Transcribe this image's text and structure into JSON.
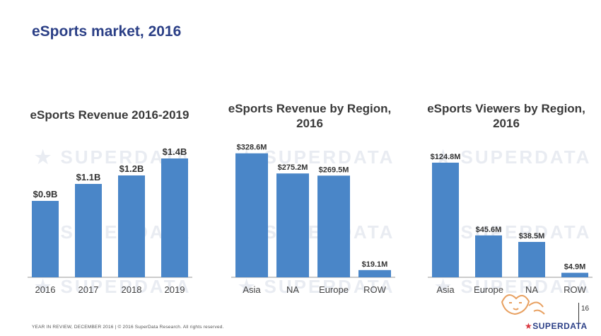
{
  "page": {
    "title": "eSports market, 2016",
    "footer": "YEAR IN REVIEW, DECEMBER 2016  |  © 2016 SuperData Research. All rights reserved.",
    "page_number": "16",
    "logo_text": "SUPERDATA",
    "watermark_text": "SUPERDATA"
  },
  "colors": {
    "bar": "#4a86c8",
    "title": "#2b3f86",
    "text": "#3a3a3a"
  },
  "chart_data": [
    {
      "type": "bar",
      "title": "eSports Revenue 2016-2019",
      "categories": [
        "2016",
        "2017",
        "2018",
        "2019"
      ],
      "values": [
        0.9,
        1.1,
        1.2,
        1.4
      ],
      "labels": [
        "$0.9B",
        "$1.1B",
        "$1.2B",
        "$1.4B"
      ],
      "ylim": [
        0,
        1.55
      ],
      "xlabel": "",
      "ylabel": "",
      "grid": false
    },
    {
      "type": "bar",
      "title": "eSports Revenue by Region, 2016",
      "categories": [
        "Asia",
        "NA",
        "Europe",
        "ROW"
      ],
      "values": [
        328.6,
        275.2,
        269.5,
        19.1
      ],
      "labels": [
        "$328.6M",
        "$275.2M",
        "$269.5M",
        "$19.1M"
      ],
      "ylim": [
        0,
        345
      ],
      "xlabel": "",
      "ylabel": "",
      "grid": false
    },
    {
      "type": "bar",
      "title": "eSports Viewers by Region, 2016",
      "categories": [
        "Asia",
        "Europe",
        "NA",
        "ROW"
      ],
      "values": [
        124.8,
        45.6,
        38.5,
        4.9
      ],
      "labels": [
        "$124.8M",
        "$45.6M",
        "$38.5M",
        "$4.9M"
      ],
      "ylim": [
        0,
        134
      ],
      "xlabel": "",
      "ylabel": "",
      "grid": false
    }
  ]
}
